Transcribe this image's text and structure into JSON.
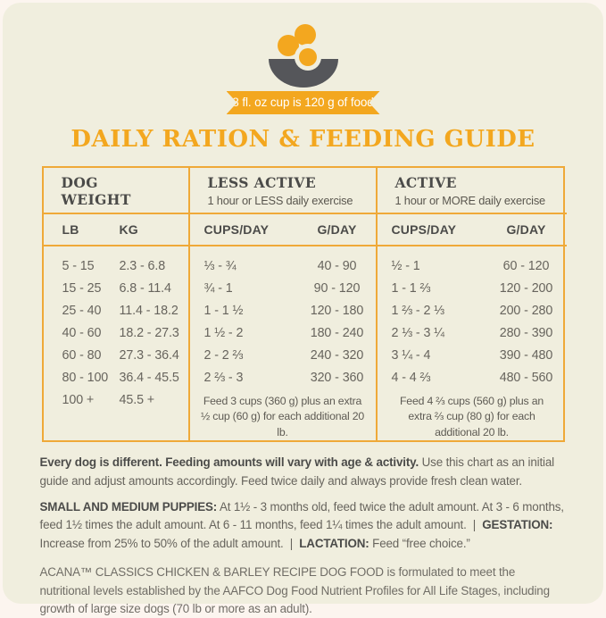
{
  "colors": {
    "accent": "#F3A71F",
    "table_border": "#EFA938",
    "card_background": "#F0EEDE",
    "heading_text": "#4B4B49",
    "body_text": "#67645D",
    "bowl_gray": "#55565A",
    "banner_text": "#FFFFFF"
  },
  "banner": {
    "text": "8 fl. oz cup is 120 g of food"
  },
  "title": "DAILY RATION & FEEDING GUIDE",
  "table": {
    "weight": {
      "title": "DOG WEIGHT",
      "lb": "LB",
      "kg": "KG"
    },
    "less_active": {
      "title": "LESS ACTIVE",
      "subtitle": "1 hour or LESS daily exercise",
      "cups": "CUPS/DAY",
      "g": "G/DAY",
      "note": "Feed 3 cups (360 g) plus an extra ½ cup (60 g) for each additional 20 lb."
    },
    "active": {
      "title": "ACTIVE",
      "subtitle": "1 hour or MORE daily exercise",
      "cups": "CUPS/DAY",
      "g": "G/DAY",
      "note": "Feed 4 ⅔ cups (560 g) plus an extra ⅔ cup (80 g) for each additional 20 lb."
    },
    "rows": [
      [
        "5 - 15",
        "2.3 - 6.8",
        "⅓ - ¾",
        "40 - 90",
        "½ - 1",
        "60 - 120"
      ],
      [
        "15 - 25",
        "6.8 - 11.4",
        "¾ - 1",
        "90 - 120",
        "1 - 1 ⅔",
        "120 - 200"
      ],
      [
        "25 - 40",
        "11.4 - 18.2",
        "1 - 1 ½",
        "120 - 180",
        "1 ⅔ - 2 ⅓",
        "200 - 280"
      ],
      [
        "40 - 60",
        "18.2 - 27.3",
        "1 ½ - 2",
        "180 - 240",
        "2 ⅓ - 3 ¼",
        "280 - 390"
      ],
      [
        "60 - 80",
        "27.3 - 36.4",
        "2 - 2 ⅔",
        "240 - 320",
        "3 ¼ - 4",
        "390 - 480"
      ],
      [
        "80 - 100",
        "36.4 - 45.5",
        "2 ⅔ - 3",
        "320 - 360",
        "4 - 4 ⅔",
        "480 - 560"
      ],
      [
        "100 +",
        "45.5 +"
      ]
    ]
  },
  "copy": {
    "p1_bold": "Every dog is different. Feeding amounts will vary with age & activity.",
    "p1_rest": " Use this chart as an initial guide and adjust amounts accordingly. Feed twice daily and always provide fresh clean water.",
    "p2_b1": "SMALL AND MEDIUM PUPPIES:",
    "p2_t1": " At 1½ - 3 months old, feed twice the adult amount. At 3 - 6 months, feed 1½ times the adult amount. At 6 - 11 months, feed 1¼ times the adult amount.",
    "p2_sep1": "  |  ",
    "p2_b2": "GESTATION:",
    "p2_t2": " Increase from 25% to 50% of the adult amount.",
    "p2_sep2": "  |  ",
    "p2_b3": "LACTATION:",
    "p2_t3": " Feed “free choice.”",
    "p3": "ACANA™ CLASSICS CHICKEN & BARLEY RECIPE DOG FOOD is formulated to meet the nutritional levels established by the AAFCO Dog Food Nutrient Profiles for All Life Stages, including growth of large size dogs (70 lb or more as an adult)."
  }
}
